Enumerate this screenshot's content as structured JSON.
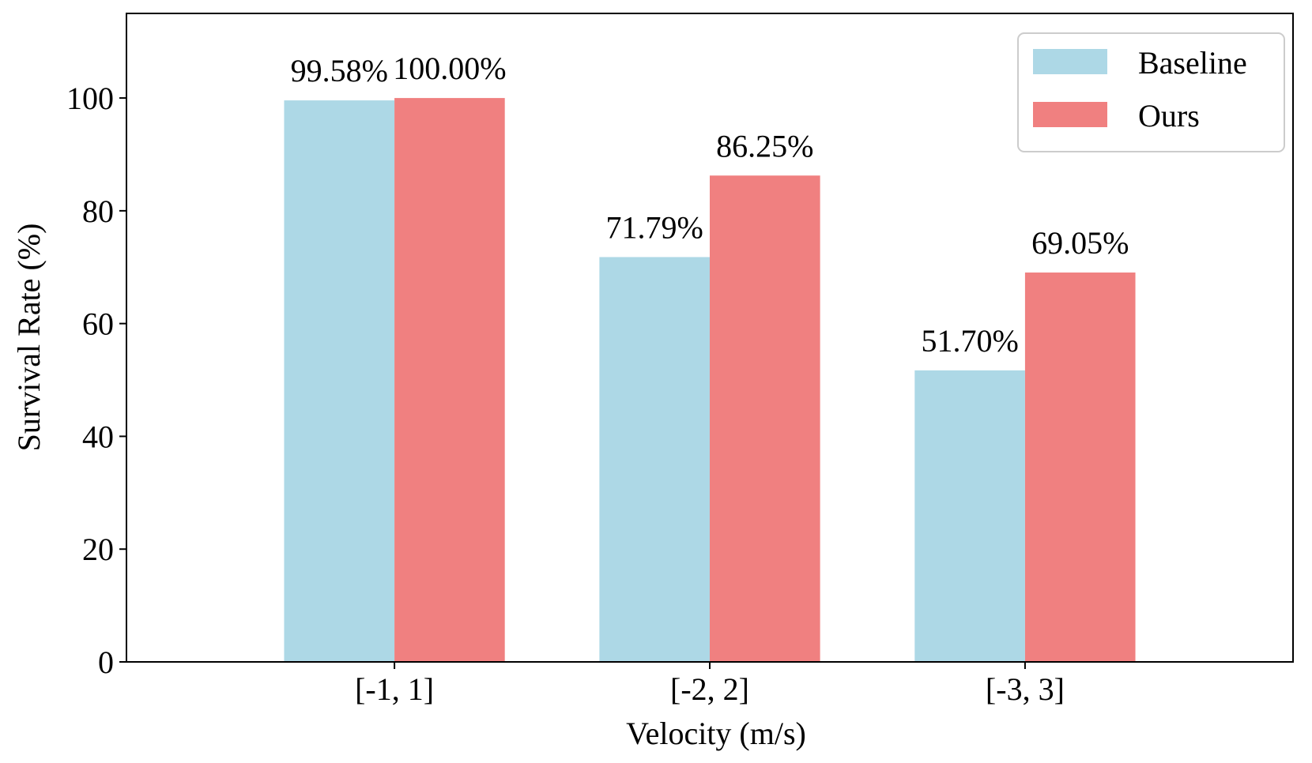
{
  "chart_data": {
    "type": "bar",
    "title": "",
    "xlabel": "Velocity (m/s)",
    "ylabel": "Survival Rate (%)",
    "categories": [
      "[-1, 1]",
      "[-2, 2]",
      "[-3, 3]"
    ],
    "series": [
      {
        "name": "Baseline",
        "color": "#add8e6",
        "values": [
          99.58,
          71.79,
          51.7
        ],
        "labels": [
          "99.58%",
          "71.79%",
          "51.70%"
        ]
      },
      {
        "name": "Ours",
        "color": "#f08080",
        "values": [
          100.0,
          86.25,
          69.05
        ],
        "labels": [
          "100.00%",
          "86.25%",
          "69.05%"
        ]
      }
    ],
    "ylim": [
      0,
      115
    ],
    "yticks": [
      0,
      20,
      40,
      60,
      80,
      100
    ],
    "grid": false,
    "legend_position": "top-right"
  }
}
